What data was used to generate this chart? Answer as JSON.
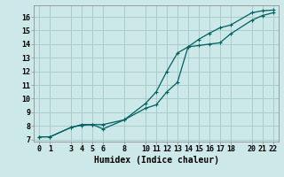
{
  "xlabel": "Humidex (Indice chaleur)",
  "bg_color": "#cce8e8",
  "grid_color": "#aacccc",
  "line_color": "#006060",
  "xlim": [
    -0.5,
    22.5
  ],
  "ylim": [
    6.85,
    16.85
  ],
  "xticks": [
    0,
    1,
    3,
    4,
    5,
    6,
    8,
    10,
    11,
    12,
    13,
    14,
    15,
    16,
    17,
    18,
    20,
    21,
    22
  ],
  "yticks": [
    7,
    8,
    9,
    10,
    11,
    12,
    13,
    14,
    15,
    16
  ],
  "line1_x": [
    0,
    1,
    3,
    4,
    5,
    6,
    8,
    10,
    11,
    12,
    13,
    14,
    15,
    16,
    17,
    18,
    20,
    21,
    22
  ],
  "line1_y": [
    7.2,
    7.2,
    7.9,
    8.1,
    8.1,
    7.78,
    8.45,
    9.65,
    10.5,
    12.0,
    13.35,
    13.8,
    13.9,
    14.0,
    14.1,
    14.75,
    15.75,
    16.1,
    16.3
  ],
  "line2_x": [
    0,
    1,
    3,
    4,
    5,
    6,
    8,
    10,
    11,
    12,
    13,
    14,
    15,
    16,
    17,
    18,
    20,
    21,
    22
  ],
  "line2_y": [
    7.2,
    7.2,
    7.9,
    8.05,
    8.1,
    8.1,
    8.45,
    9.3,
    9.55,
    10.5,
    11.2,
    13.8,
    14.35,
    14.8,
    15.2,
    15.4,
    16.3,
    16.45,
    16.5
  ],
  "tick_fontsize": 6.0,
  "xlabel_fontsize": 7.0
}
